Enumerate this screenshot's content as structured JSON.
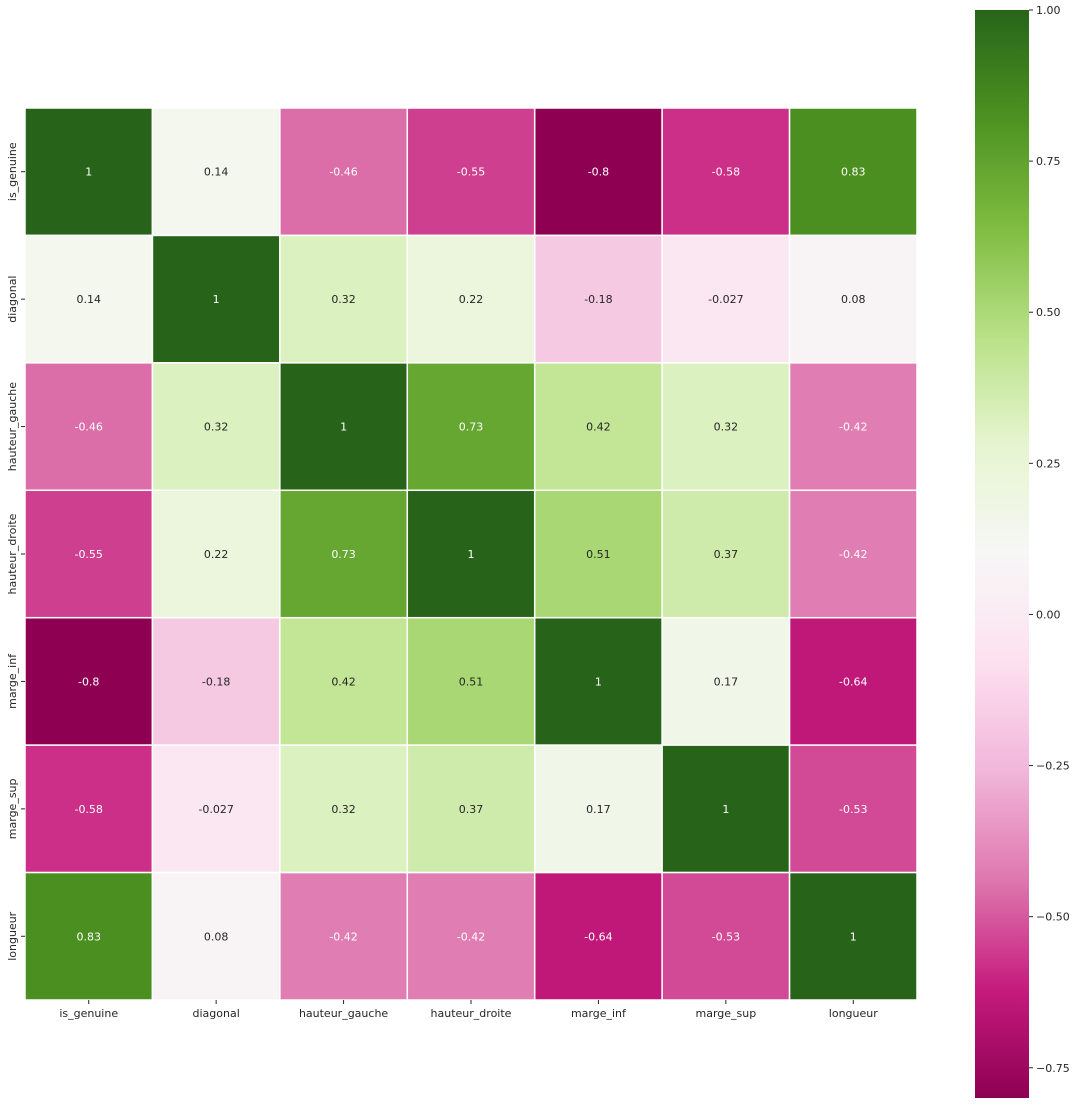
{
  "chart_data": {
    "type": "heatmap",
    "title": "",
    "xlabel": "",
    "ylabel": "",
    "variables": [
      "is_genuine",
      "diagonal",
      "hauteur_gauche",
      "hauteur_droite",
      "marge_inf",
      "marge_sup",
      "longueur"
    ],
    "values": [
      [
        1,
        0.14,
        -0.46,
        -0.55,
        -0.8,
        -0.58,
        0.83
      ],
      [
        0.14,
        1,
        0.32,
        0.22,
        -0.18,
        -0.027,
        0.08
      ],
      [
        -0.46,
        0.32,
        1,
        0.73,
        0.42,
        0.32,
        -0.42
      ],
      [
        -0.55,
        0.22,
        0.73,
        1,
        0.51,
        0.37,
        -0.42
      ],
      [
        -0.8,
        -0.18,
        0.42,
        0.51,
        1,
        0.17,
        -0.64
      ],
      [
        -0.58,
        -0.027,
        0.32,
        0.37,
        0.17,
        1,
        -0.53
      ],
      [
        0.83,
        0.08,
        -0.42,
        -0.42,
        -0.64,
        -0.53,
        1
      ]
    ],
    "cell_labels": [
      [
        "1",
        "0.14",
        "-0.46",
        "-0.55",
        "-0.8",
        "-0.58",
        "0.83"
      ],
      [
        "0.14",
        "1",
        "0.32",
        "0.22",
        "-0.18",
        "-0.027",
        "0.08"
      ],
      [
        "-0.46",
        "0.32",
        "1",
        "0.73",
        "0.42",
        "0.32",
        "-0.42"
      ],
      [
        "-0.55",
        "0.22",
        "0.73",
        "1",
        "0.51",
        "0.37",
        "-0.42"
      ],
      [
        "-0.8",
        "-0.18",
        "0.42",
        "0.51",
        "1",
        "0.17",
        "-0.64"
      ],
      [
        "-0.58",
        "-0.027",
        "0.32",
        "0.37",
        "0.17",
        "1",
        "-0.53"
      ],
      [
        "0.83",
        "0.08",
        "-0.42",
        "-0.42",
        "-0.64",
        "-0.53",
        "1"
      ]
    ],
    "colormap": "PiYG",
    "vmin": -0.8,
    "vmax": 1.0,
    "colorbar": {
      "ticks": [
        1.0,
        0.75,
        0.5,
        0.25,
        0.0,
        -0.25,
        -0.5,
        -0.75
      ],
      "tick_labels": [
        "1.00",
        "0.75",
        "0.50",
        "0.25",
        "0.00",
        "−0.25",
        "−0.50",
        "−0.75"
      ],
      "placement": "right"
    },
    "grid_lines": "white"
  }
}
